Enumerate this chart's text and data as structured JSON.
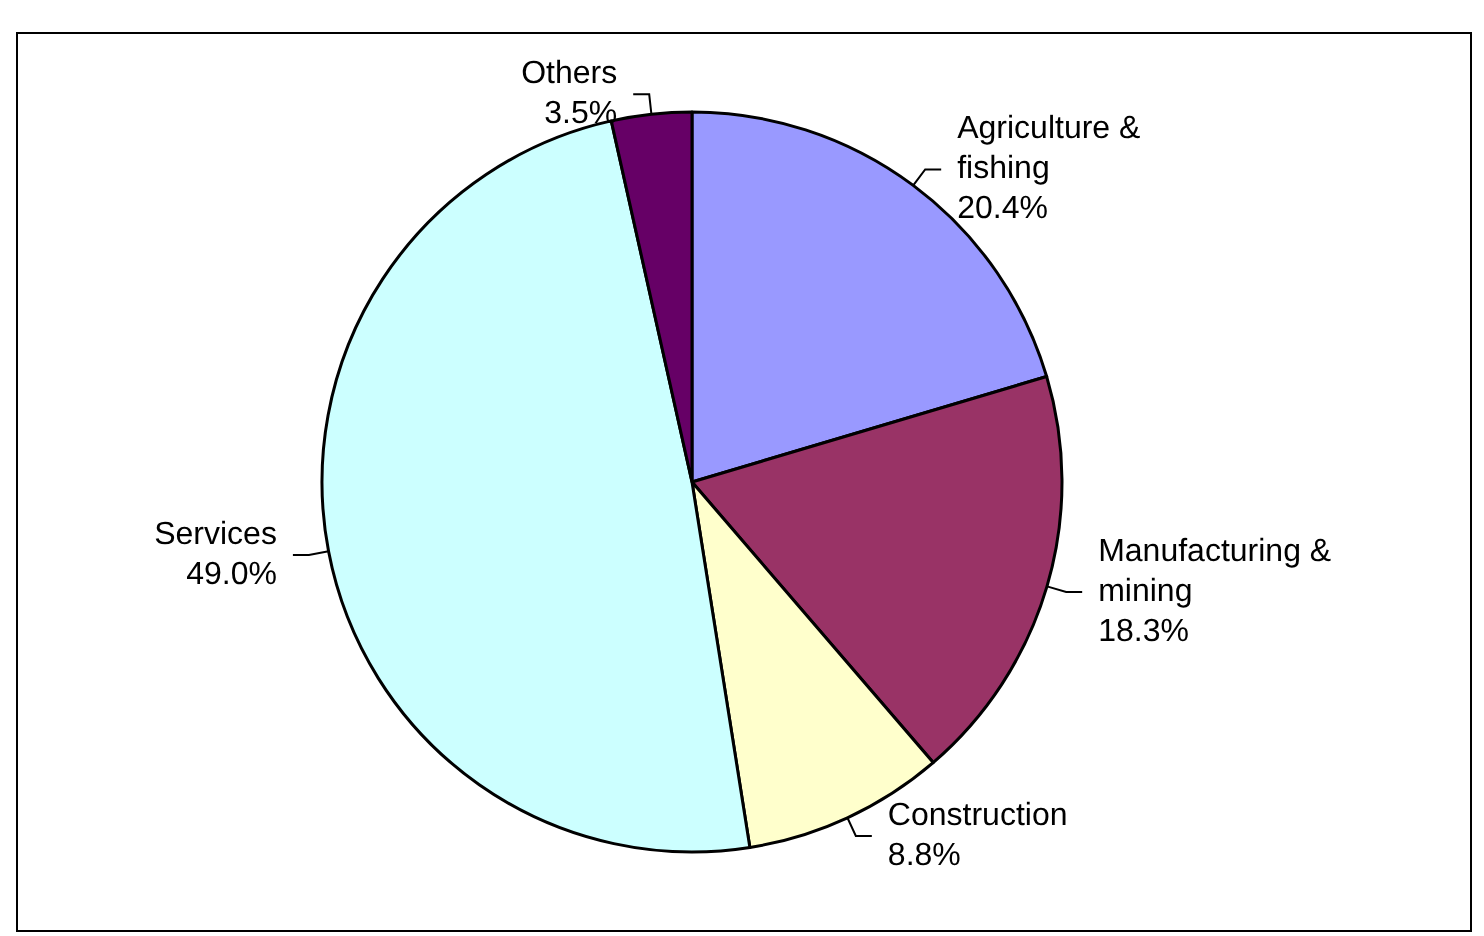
{
  "chart_data": {
    "type": "pie",
    "categories": [
      "Agriculture & fishing",
      "Manufacturing & mining",
      "Construction",
      "Services",
      "Others"
    ],
    "values": [
      20.4,
      18.3,
      8.8,
      49.0,
      3.5
    ],
    "colors": [
      "#9999ff",
      "#993366",
      "#ffffcc",
      "#ccffff",
      "#660066"
    ],
    "value_labels": [
      "20.4%",
      "18.3%",
      "8.8%",
      "49.0%",
      "3.5%"
    ],
    "legend": false
  }
}
